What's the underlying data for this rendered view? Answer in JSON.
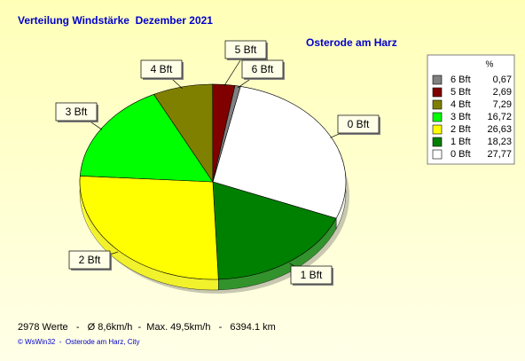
{
  "chart_data": {
    "type": "pie",
    "title": "Verteilung Windstärke  Dezember 2021",
    "subtitle": "Osterode am Harz",
    "legend_title": "%",
    "categories": [
      "6 Bft",
      "5 Bft",
      "4 Bft",
      "3 Bft",
      "2 Bft",
      "1 Bft",
      "0 Bft"
    ],
    "values": [
      0.67,
      2.69,
      7.29,
      16.72,
      26.63,
      18.23,
      27.77
    ],
    "value_labels": [
      "0,67",
      "2,69",
      "7,29",
      "16,72",
      "26,63",
      "18,23",
      "27,77"
    ],
    "colors": [
      "#808080",
      "#800000",
      "#808000",
      "#00ff00",
      "#ffff00",
      "#008000",
      "#ffffff"
    ],
    "footer": "2978 Werte   -   Ø 8,6km/h  -  Max. 49,5km/h   -   6394.1 km",
    "credit": "© WsWin32  -  Osterode am Harz, City"
  }
}
